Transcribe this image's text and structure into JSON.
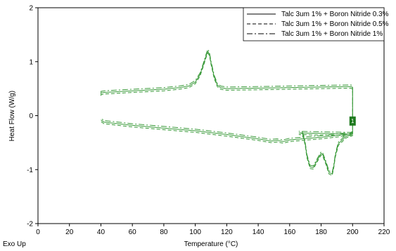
{
  "chart_data": {
    "type": "line",
    "xlabel": "Temperature (°C)",
    "ylabel": "Heat Flow (W/g)",
    "corner_label": "Exo Up",
    "xlim": [
      0,
      220
    ],
    "ylim": [
      -2,
      2
    ],
    "xticks": [
      0,
      20,
      40,
      60,
      80,
      100,
      120,
      140,
      160,
      180,
      200,
      220
    ],
    "yticks": [
      -2,
      -1,
      0,
      1,
      2
    ],
    "grid": false,
    "legend_position": "top-right",
    "line_color": "#3a9a3a",
    "marker_label": "1",
    "marker_color": "#1e7a1e",
    "marker_point": [
      200,
      -0.1
    ],
    "series": [
      {
        "name": "Talc 3um 1% + Boron Nitride 0.3%",
        "line_style": "solid",
        "x": [
          40,
          40,
          42,
          60,
          80,
          90,
          96,
          100,
          103,
          105,
          107,
          108,
          109,
          110,
          112,
          114,
          116,
          120,
          140,
          160,
          180,
          199,
          200,
          200,
          199,
          180,
          166,
          168,
          169,
          170,
          171,
          173,
          175,
          178,
          180,
          181,
          183,
          185,
          187,
          188,
          189,
          191,
          196,
          200,
          200,
          195,
          180,
          160,
          156,
          152,
          148,
          140,
          120,
          100,
          80,
          60,
          42,
          40
        ],
        "y": [
          0.4,
          0.42,
          0.43,
          0.46,
          0.49,
          0.52,
          0.55,
          0.62,
          0.76,
          0.93,
          1.12,
          1.19,
          1.14,
          0.98,
          0.72,
          0.57,
          0.52,
          0.5,
          0.51,
          0.52,
          0.53,
          0.54,
          0.52,
          -0.33,
          -0.34,
          -0.33,
          -0.32,
          -0.33,
          -0.4,
          -0.55,
          -0.75,
          -0.95,
          -0.96,
          -0.8,
          -0.7,
          -0.72,
          -0.87,
          -1.05,
          -1.08,
          -0.95,
          -0.74,
          -0.52,
          -0.38,
          -0.34,
          -0.33,
          -0.35,
          -0.4,
          -0.45,
          -0.48,
          -0.46,
          -0.47,
          -0.43,
          -0.35,
          -0.28,
          -0.23,
          -0.18,
          -0.12,
          -0.08
        ]
      },
      {
        "name": "Talc 3um 1% + Boron Nitride 0.5%",
        "line_style": "dashed",
        "x": [
          40,
          40,
          42,
          60,
          80,
          90,
          96,
          100,
          103,
          105,
          107,
          108,
          109,
          110,
          112,
          114,
          116,
          120,
          140,
          160,
          180,
          199,
          200,
          200,
          199,
          180,
          166,
          168,
          169,
          170,
          171,
          173,
          175,
          178,
          180,
          181,
          183,
          185,
          187,
          188,
          189,
          191,
          196,
          200,
          200,
          195,
          180,
          160,
          156,
          152,
          148,
          140,
          120,
          100,
          80,
          60,
          42,
          40
        ],
        "y": [
          0.37,
          0.39,
          0.4,
          0.43,
          0.46,
          0.49,
          0.52,
          0.59,
          0.73,
          0.9,
          1.09,
          1.16,
          1.11,
          0.95,
          0.69,
          0.54,
          0.49,
          0.47,
          0.48,
          0.49,
          0.5,
          0.51,
          0.49,
          -0.36,
          -0.37,
          -0.36,
          -0.35,
          -0.36,
          -0.43,
          -0.58,
          -0.78,
          -0.98,
          -0.99,
          -0.83,
          -0.73,
          -0.75,
          -0.9,
          -1.08,
          -1.11,
          -0.98,
          -0.77,
          -0.55,
          -0.41,
          -0.37,
          -0.36,
          -0.38,
          -0.43,
          -0.48,
          -0.51,
          -0.49,
          -0.5,
          -0.46,
          -0.38,
          -0.31,
          -0.26,
          -0.21,
          -0.15,
          -0.11
        ]
      },
      {
        "name": "Talc 3um 1% + Boron Nitride 1%",
        "line_style": "dashdot",
        "x": [
          40,
          40,
          42,
          60,
          80,
          90,
          96,
          100,
          103,
          105,
          107,
          108,
          109,
          110,
          112,
          114,
          116,
          120,
          140,
          160,
          180,
          199,
          200,
          200,
          199,
          180,
          166,
          168,
          169,
          170,
          171,
          173,
          175,
          178,
          180,
          181,
          183,
          185,
          187,
          188,
          189,
          191,
          196,
          200,
          200,
          195,
          180,
          160,
          156,
          152,
          148,
          140,
          120,
          100,
          80,
          60,
          42,
          40
        ],
        "y": [
          0.43,
          0.45,
          0.46,
          0.49,
          0.52,
          0.55,
          0.58,
          0.65,
          0.79,
          0.96,
          1.15,
          1.23,
          1.17,
          1.01,
          0.75,
          0.6,
          0.55,
          0.53,
          0.54,
          0.55,
          0.56,
          0.57,
          0.55,
          -0.3,
          -0.31,
          -0.3,
          -0.29,
          -0.3,
          -0.37,
          -0.52,
          -0.72,
          -0.92,
          -0.93,
          -0.77,
          -0.67,
          -0.69,
          -0.84,
          -1.02,
          -1.05,
          -0.92,
          -0.71,
          -0.49,
          -0.35,
          -0.31,
          -0.3,
          -0.32,
          -0.37,
          -0.42,
          -0.45,
          -0.43,
          -0.44,
          -0.4,
          -0.32,
          -0.25,
          -0.2,
          -0.15,
          -0.09,
          -0.05
        ]
      }
    ]
  }
}
